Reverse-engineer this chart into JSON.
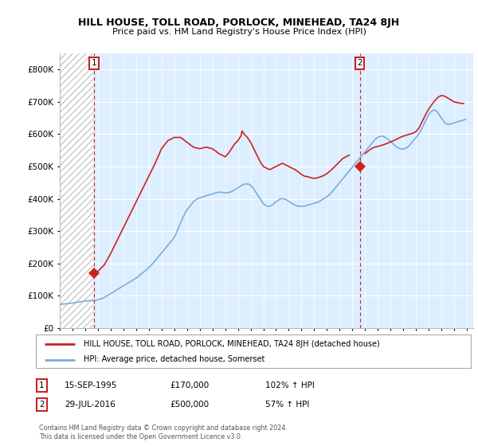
{
  "title": "HILL HOUSE, TOLL ROAD, PORLOCK, MINEHEAD, TA24 8JH",
  "subtitle": "Price paid vs. HM Land Registry's House Price Index (HPI)",
  "ylim": [
    0,
    850000
  ],
  "yticks": [
    0,
    100000,
    200000,
    300000,
    400000,
    500000,
    600000,
    700000,
    800000
  ],
  "hpi_color": "#7aaddc",
  "house_color": "#cc2222",
  "purchase1_year": 1995.71,
  "purchase1_price": 170000,
  "purchase2_year": 2016.58,
  "purchase2_price": 500000,
  "legend_house": "HILL HOUSE, TOLL ROAD, PORLOCK, MINEHEAD, TA24 8JH (detached house)",
  "legend_hpi": "HPI: Average price, detached house, Somerset",
  "copyright": "Contains HM Land Registry data © Crown copyright and database right 2024.\nThis data is licensed under the Open Government Licence v3.0.",
  "grid_color": "#cccccc",
  "bg_color": "#ddeeff",
  "hatch_color": "#c8c8c8",
  "xlim_left": 1993.0,
  "xlim_right": 2025.5,
  "hpi_x": [
    1993.0,
    1993.083,
    1993.167,
    1993.25,
    1993.333,
    1993.417,
    1993.5,
    1993.583,
    1993.667,
    1993.75,
    1993.833,
    1993.917,
    1994.0,
    1994.083,
    1994.167,
    1994.25,
    1994.333,
    1994.417,
    1994.5,
    1994.583,
    1994.667,
    1994.75,
    1994.833,
    1994.917,
    1995.0,
    1995.083,
    1995.167,
    1995.25,
    1995.333,
    1995.417,
    1995.5,
    1995.583,
    1995.667,
    1995.75,
    1995.833,
    1995.917,
    1996.0,
    1996.083,
    1996.167,
    1996.25,
    1996.333,
    1996.417,
    1996.5,
    1996.583,
    1996.667,
    1996.75,
    1996.833,
    1996.917,
    1997.0,
    1997.083,
    1997.167,
    1997.25,
    1997.333,
    1997.417,
    1997.5,
    1997.583,
    1997.667,
    1997.75,
    1997.833,
    1997.917,
    1998.0,
    1998.083,
    1998.167,
    1998.25,
    1998.333,
    1998.417,
    1998.5,
    1998.583,
    1998.667,
    1998.75,
    1998.833,
    1998.917,
    1999.0,
    1999.083,
    1999.167,
    1999.25,
    1999.333,
    1999.417,
    1999.5,
    1999.583,
    1999.667,
    1999.75,
    1999.833,
    1999.917,
    2000.0,
    2000.083,
    2000.167,
    2000.25,
    2000.333,
    2000.417,
    2000.5,
    2000.583,
    2000.667,
    2000.75,
    2000.833,
    2000.917,
    2001.0,
    2001.083,
    2001.167,
    2001.25,
    2001.333,
    2001.417,
    2001.5,
    2001.583,
    2001.667,
    2001.75,
    2001.833,
    2001.917,
    2002.0,
    2002.083,
    2002.167,
    2002.25,
    2002.333,
    2002.417,
    2002.5,
    2002.583,
    2002.667,
    2002.75,
    2002.833,
    2002.917,
    2003.0,
    2003.083,
    2003.167,
    2003.25,
    2003.333,
    2003.417,
    2003.5,
    2003.583,
    2003.667,
    2003.75,
    2003.833,
    2003.917,
    2004.0,
    2004.083,
    2004.167,
    2004.25,
    2004.333,
    2004.417,
    2004.5,
    2004.583,
    2004.667,
    2004.75,
    2004.833,
    2004.917,
    2005.0,
    2005.083,
    2005.167,
    2005.25,
    2005.333,
    2005.417,
    2005.5,
    2005.583,
    2005.667,
    2005.75,
    2005.833,
    2005.917,
    2006.0,
    2006.083,
    2006.167,
    2006.25,
    2006.333,
    2006.417,
    2006.5,
    2006.583,
    2006.667,
    2006.75,
    2006.833,
    2006.917,
    2007.0,
    2007.083,
    2007.167,
    2007.25,
    2007.333,
    2007.417,
    2007.5,
    2007.583,
    2007.667,
    2007.75,
    2007.833,
    2007.917,
    2008.0,
    2008.083,
    2008.167,
    2008.25,
    2008.333,
    2008.417,
    2008.5,
    2008.583,
    2008.667,
    2008.75,
    2008.833,
    2008.917,
    2009.0,
    2009.083,
    2009.167,
    2009.25,
    2009.333,
    2009.417,
    2009.5,
    2009.583,
    2009.667,
    2009.75,
    2009.833,
    2009.917,
    2010.0,
    2010.083,
    2010.167,
    2010.25,
    2010.333,
    2010.417,
    2010.5,
    2010.583,
    2010.667,
    2010.75,
    2010.833,
    2010.917,
    2011.0,
    2011.083,
    2011.167,
    2011.25,
    2011.333,
    2011.417,
    2011.5,
    2011.583,
    2011.667,
    2011.75,
    2011.833,
    2011.917,
    2012.0,
    2012.083,
    2012.167,
    2012.25,
    2012.333,
    2012.417,
    2012.5,
    2012.583,
    2012.667,
    2012.75,
    2012.833,
    2012.917,
    2013.0,
    2013.083,
    2013.167,
    2013.25,
    2013.333,
    2013.417,
    2013.5,
    2013.583,
    2013.667,
    2013.75,
    2013.833,
    2013.917,
    2014.0,
    2014.083,
    2014.167,
    2014.25,
    2014.333,
    2014.417,
    2014.5,
    2014.583,
    2014.667,
    2014.75,
    2014.833,
    2014.917,
    2015.0,
    2015.083,
    2015.167,
    2015.25,
    2015.333,
    2015.417,
    2015.5,
    2015.583,
    2015.667,
    2015.75,
    2015.833,
    2015.917,
    2016.0,
    2016.083,
    2016.167,
    2016.25,
    2016.333,
    2016.417,
    2016.5,
    2016.583,
    2016.667,
    2016.75,
    2016.833,
    2016.917,
    2017.0,
    2017.083,
    2017.167,
    2017.25,
    2017.333,
    2017.417,
    2017.5,
    2017.583,
    2017.667,
    2017.75,
    2017.833,
    2017.917,
    2018.0,
    2018.083,
    2018.167,
    2018.25,
    2018.333,
    2018.417,
    2018.5,
    2018.583,
    2018.667,
    2018.75,
    2018.833,
    2018.917,
    2019.0,
    2019.083,
    2019.167,
    2019.25,
    2019.333,
    2019.417,
    2019.5,
    2019.583,
    2019.667,
    2019.75,
    2019.833,
    2019.917,
    2020.0,
    2020.083,
    2020.167,
    2020.25,
    2020.333,
    2020.417,
    2020.5,
    2020.583,
    2020.667,
    2020.75,
    2020.833,
    2020.917,
    2021.0,
    2021.083,
    2021.167,
    2021.25,
    2021.333,
    2021.417,
    2021.5,
    2021.583,
    2021.667,
    2021.75,
    2021.833,
    2021.917,
    2022.0,
    2022.083,
    2022.167,
    2022.25,
    2022.333,
    2022.417,
    2022.5,
    2022.583,
    2022.667,
    2022.75,
    2022.833,
    2022.917,
    2023.0,
    2023.083,
    2023.167,
    2023.25,
    2023.333,
    2023.417,
    2023.5,
    2023.583,
    2023.667,
    2023.75,
    2023.833,
    2023.917,
    2024.0,
    2024.083,
    2024.167,
    2024.25,
    2024.333,
    2024.417,
    2024.5,
    2024.583,
    2024.667,
    2024.75,
    2024.833,
    2024.917
  ],
  "hpi_y": [
    72000,
    72500,
    73000,
    73500,
    74000,
    74000,
    74500,
    75000,
    75000,
    75500,
    76000,
    76500,
    77000,
    77500,
    78000,
    78500,
    79000,
    79500,
    80000,
    80500,
    81000,
    81500,
    82000,
    82500,
    83000,
    83000,
    83500,
    84000,
    84000,
    84000,
    84000,
    84000,
    84500,
    85000,
    85500,
    86000,
    87000,
    88000,
    89000,
    90000,
    91000,
    92500,
    94000,
    96000,
    98000,
    100000,
    102000,
    104000,
    106000,
    108000,
    110000,
    112000,
    114000,
    116000,
    118000,
    120000,
    122000,
    124000,
    126000,
    128000,
    130000,
    132000,
    134000,
    136000,
    138000,
    140000,
    142000,
    144000,
    146000,
    148000,
    150000,
    152000,
    154000,
    156000,
    158000,
    162000,
    165000,
    168000,
    170000,
    172000,
    175000,
    178000,
    181000,
    184000,
    187000,
    190000,
    193000,
    197000,
    200000,
    204000,
    208000,
    212000,
    216000,
    220000,
    224000,
    228000,
    232000,
    236000,
    240000,
    244000,
    248000,
    252000,
    256000,
    260000,
    264000,
    268000,
    272000,
    276000,
    280000,
    287000,
    294000,
    302000,
    310000,
    318000,
    325000,
    333000,
    340000,
    347000,
    354000,
    360000,
    365000,
    370000,
    374000,
    378000,
    382000,
    386000,
    390000,
    393000,
    396000,
    398000,
    400000,
    402000,
    403000,
    404000,
    405000,
    406000,
    407000,
    408000,
    409000,
    410000,
    411000,
    412000,
    413000,
    414000,
    415000,
    416000,
    417000,
    418000,
    419000,
    420000,
    420000,
    420000,
    420000,
    420000,
    419000,
    418000,
    418000,
    418000,
    418000,
    419000,
    420000,
    421000,
    422000,
    424000,
    426000,
    428000,
    430000,
    432000,
    434000,
    436000,
    438000,
    440000,
    442000,
    444000,
    445000,
    446000,
    446000,
    446000,
    445000,
    444000,
    442000,
    438000,
    434000,
    430000,
    425000,
    420000,
    415000,
    410000,
    405000,
    400000,
    395000,
    390000,
    385000,
    382000,
    380000,
    378000,
    377000,
    377000,
    377000,
    378000,
    380000,
    382000,
    385000,
    388000,
    390000,
    393000,
    395000,
    397000,
    399000,
    400000,
    400000,
    400000,
    399000,
    398000,
    396000,
    394000,
    392000,
    390000,
    388000,
    386000,
    384000,
    382000,
    380000,
    379000,
    378000,
    377000,
    377000,
    377000,
    377000,
    377000,
    377000,
    377000,
    378000,
    379000,
    380000,
    381000,
    382000,
    383000,
    384000,
    385000,
    386000,
    387000,
    388000,
    389000,
    390000,
    392000,
    394000,
    396000,
    398000,
    400000,
    402000,
    404000,
    406000,
    409000,
    412000,
    415000,
    418000,
    422000,
    426000,
    430000,
    434000,
    438000,
    442000,
    446000,
    450000,
    454000,
    458000,
    462000,
    466000,
    470000,
    474000,
    478000,
    482000,
    486000,
    490000,
    494000,
    498000,
    502000,
    506000,
    510000,
    514000,
    518000,
    522000,
    526000,
    530000,
    534000,
    538000,
    542000,
    546000,
    550000,
    554000,
    558000,
    562000,
    566000,
    570000,
    574000,
    578000,
    582000,
    585000,
    588000,
    590000,
    592000,
    593000,
    594000,
    594000,
    593000,
    592000,
    590000,
    588000,
    586000,
    583000,
    580000,
    577000,
    574000,
    571000,
    568000,
    565000,
    562000,
    560000,
    558000,
    556000,
    555000,
    554000,
    554000,
    554000,
    555000,
    556000,
    558000,
    560000,
    563000,
    566000,
    570000,
    574000,
    578000,
    582000,
    586000,
    590000,
    594000,
    598000,
    603000,
    608000,
    614000,
    620000,
    627000,
    634000,
    641000,
    648000,
    655000,
    660000,
    665000,
    669000,
    672000,
    674000,
    675000,
    674000,
    672000,
    669000,
    665000,
    660000,
    655000,
    650000,
    645000,
    641000,
    637000,
    634000,
    632000,
    631000,
    631000,
    631000,
    632000,
    633000,
    634000,
    635000,
    636000,
    637000,
    638000,
    639000,
    640000,
    641000,
    642000,
    643000,
    644000,
    645000,
    646000
  ],
  "house_x": [
    1995.71,
    1996.0,
    1996.5,
    1997.0,
    1997.5,
    1998.0,
    1998.5,
    1999.0,
    1999.5,
    2000.0,
    2000.5,
    2001.0,
    2001.5,
    2002.0,
    2002.5,
    2003.0,
    2003.5,
    2004.0,
    2004.5,
    2005.0,
    2005.25,
    2005.5,
    2005.75,
    2006.0,
    2006.25,
    2006.5,
    2006.75,
    2007.0,
    2007.25,
    2007.33,
    2007.5,
    2007.75,
    2008.0,
    2008.25,
    2008.5,
    2008.75,
    2009.0,
    2009.25,
    2009.5,
    2009.75,
    2010.0,
    2010.25,
    2010.5,
    2010.75,
    2011.0,
    2011.25,
    2011.5,
    2011.75,
    2012.0,
    2012.25,
    2012.5,
    2012.75,
    2013.0,
    2013.25,
    2013.5,
    2013.75,
    2014.0,
    2014.25,
    2014.5,
    2014.75,
    2015.0,
    2015.25,
    2015.5,
    2015.75,
    2016.58,
    2017.0,
    2017.25,
    2017.5,
    2017.75,
    2018.0,
    2018.25,
    2018.5,
    2018.75,
    2019.0,
    2019.25,
    2019.5,
    2019.75,
    2020.0,
    2020.25,
    2020.5,
    2020.75,
    2021.0,
    2021.25,
    2021.5,
    2021.75,
    2022.0,
    2022.25,
    2022.5,
    2022.75,
    2023.0,
    2023.25,
    2023.5,
    2023.75,
    2024.0,
    2024.25,
    2024.5,
    2024.75
  ],
  "house_y": [
    170000,
    175000,
    195000,
    230000,
    270000,
    310000,
    350000,
    390000,
    430000,
    470000,
    510000,
    555000,
    580000,
    590000,
    590000,
    575000,
    560000,
    555000,
    560000,
    555000,
    548000,
    540000,
    535000,
    530000,
    540000,
    555000,
    570000,
    580000,
    595000,
    610000,
    600000,
    590000,
    575000,
    555000,
    535000,
    515000,
    500000,
    495000,
    490000,
    495000,
    500000,
    505000,
    510000,
    505000,
    500000,
    495000,
    490000,
    483000,
    475000,
    470000,
    468000,
    465000,
    463000,
    465000,
    468000,
    472000,
    478000,
    486000,
    495000,
    505000,
    515000,
    525000,
    530000,
    535000,
    500000,
    540000,
    548000,
    555000,
    560000,
    562000,
    565000,
    568000,
    572000,
    576000,
    580000,
    585000,
    590000,
    594000,
    597000,
    600000,
    603000,
    608000,
    620000,
    640000,
    660000,
    678000,
    692000,
    705000,
    715000,
    720000,
    718000,
    712000,
    706000,
    700000,
    698000,
    696000,
    695000
  ]
}
